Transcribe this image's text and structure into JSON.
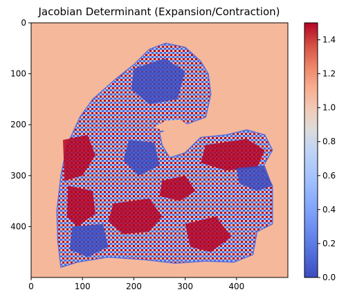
{
  "chart_data": {
    "type": "heatmap",
    "title": "Jacobian Determinant (Expansion/Contraction)",
    "xlabel": "",
    "ylabel": "",
    "xlim": [
      0,
      500
    ],
    "ylim": [
      500,
      0
    ],
    "x_ticks": [
      "0",
      "100",
      "200",
      "300",
      "400"
    ],
    "y_ticks": [
      "0",
      "100",
      "200",
      "300",
      "400"
    ],
    "colorbar": {
      "colormap": "coolwarm",
      "vmin": 0.0,
      "vmax": 1.5,
      "ticks": [
        "0.0",
        "0.2",
        "0.4",
        "0.6",
        "0.8",
        "1.0",
        "1.2",
        "1.4"
      ]
    },
    "background_value": 1.2,
    "colors": {
      "low": "#3b4cc0",
      "mid": "#dddddd",
      "high": "#b40426",
      "background": "#f6b89b"
    },
    "regions": [
      {
        "name": "tissue-outline",
        "outline": [
          [
            58,
            480
          ],
          [
            90,
            470
          ],
          [
            150,
            460
          ],
          [
            220,
            465
          ],
          [
            280,
            472
          ],
          [
            340,
            468
          ],
          [
            395,
            470
          ],
          [
            432,
            455
          ],
          [
            440,
            410
          ],
          [
            470,
            395
          ],
          [
            470,
            320
          ],
          [
            450,
            285
          ],
          [
            470,
            250
          ],
          [
            455,
            220
          ],
          [
            420,
            210
          ],
          [
            380,
            220
          ],
          [
            330,
            225
          ],
          [
            300,
            255
          ],
          [
            270,
            265
          ],
          [
            255,
            240
          ],
          [
            250,
            215
          ],
          [
            300,
            200
          ],
          [
            340,
            185
          ],
          [
            350,
            140
          ],
          [
            345,
            100
          ],
          [
            330,
            75
          ],
          [
            300,
            48
          ],
          [
            262,
            40
          ],
          [
            230,
            52
          ],
          [
            200,
            82
          ],
          [
            165,
            110
          ],
          [
            120,
            150
          ],
          [
            95,
            185
          ],
          [
            70,
            240
          ],
          [
            58,
            300
          ],
          [
            50,
            370
          ],
          [
            52,
            430
          ]
        ]
      },
      {
        "name": "hole",
        "outline": [
          [
            240,
            205
          ],
          [
            262,
            192
          ],
          [
            290,
            190
          ],
          [
            305,
            200
          ],
          [
            295,
            212
          ],
          [
            262,
            214
          ]
        ]
      },
      {
        "name": "hot-patch-upper-left",
        "outline": [
          [
            62,
            230
          ],
          [
            110,
            220
          ],
          [
            125,
            260
          ],
          [
            100,
            300
          ],
          [
            65,
            310
          ]
        ]
      },
      {
        "name": "hot-patch-right",
        "outline": [
          [
            340,
            240
          ],
          [
            420,
            228
          ],
          [
            455,
            250
          ],
          [
            440,
            285
          ],
          [
            380,
            290
          ],
          [
            330,
            275
          ]
        ]
      },
      {
        "name": "hot-patch-lower-center",
        "outline": [
          [
            160,
            355
          ],
          [
            230,
            345
          ],
          [
            255,
            380
          ],
          [
            230,
            410
          ],
          [
            180,
            415
          ],
          [
            150,
            390
          ]
        ]
      },
      {
        "name": "hot-patch-mid-right",
        "outline": [
          [
            255,
            310
          ],
          [
            300,
            300
          ],
          [
            320,
            330
          ],
          [
            290,
            350
          ],
          [
            250,
            340
          ]
        ]
      },
      {
        "name": "hot-patch-bottom-right",
        "outline": [
          [
            300,
            395
          ],
          [
            360,
            380
          ],
          [
            390,
            420
          ],
          [
            350,
            450
          ],
          [
            310,
            440
          ]
        ]
      },
      {
        "name": "hot-patch-left",
        "outline": [
          [
            72,
            320
          ],
          [
            120,
            330
          ],
          [
            125,
            375
          ],
          [
            90,
            400
          ],
          [
            70,
            380
          ]
        ]
      },
      {
        "name": "cold-patch-top",
        "outline": [
          [
            200,
            90
          ],
          [
            260,
            70
          ],
          [
            300,
            95
          ],
          [
            285,
            150
          ],
          [
            230,
            160
          ],
          [
            195,
            130
          ]
        ]
      },
      {
        "name": "cold-patch-right-edge",
        "outline": [
          [
            400,
            285
          ],
          [
            455,
            280
          ],
          [
            470,
            320
          ],
          [
            440,
            330
          ],
          [
            405,
            315
          ]
        ]
      },
      {
        "name": "cold-patch-middle",
        "outline": [
          [
            190,
            230
          ],
          [
            240,
            235
          ],
          [
            250,
            280
          ],
          [
            210,
            300
          ],
          [
            180,
            270
          ]
        ]
      },
      {
        "name": "cold-patch-lower-left",
        "outline": [
          [
            80,
            400
          ],
          [
            140,
            395
          ],
          [
            150,
            440
          ],
          [
            110,
            460
          ],
          [
            75,
            445
          ]
        ]
      }
    ]
  }
}
